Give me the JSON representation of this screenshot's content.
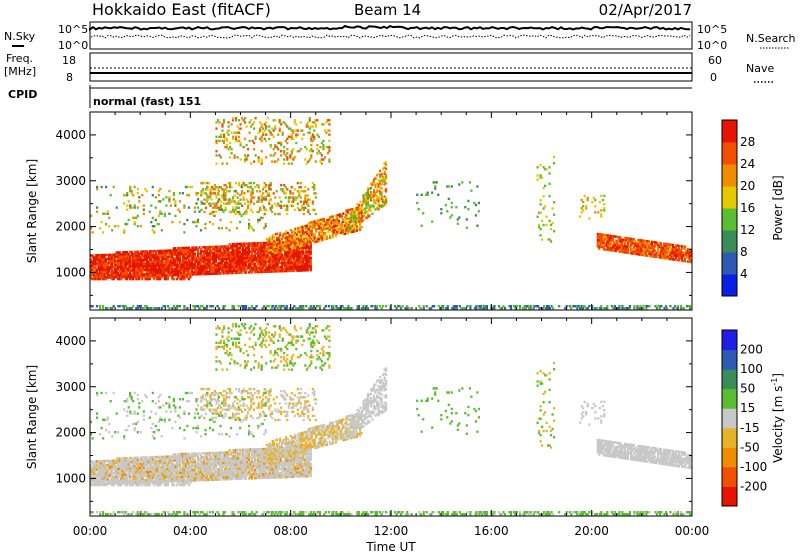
{
  "header": {
    "station": "Hokkaido East (fitACF)",
    "beam": "Beam 14",
    "date": "02/Apr/2017"
  },
  "top_panels": {
    "nsky_label": "N.Sky",
    "nsearch_label": "N.Search",
    "noise_ticks": [
      "10^5",
      "10^0"
    ],
    "freq_label_1": "Freq.",
    "freq_label_2": "[MHz]",
    "freq_ticks": [
      "18",
      "8"
    ],
    "nave_label": "Nave",
    "nave_ticks": [
      "60",
      "0"
    ],
    "cpid_label": "CPID",
    "cpid_value": "normal (fast) 151"
  },
  "colors": {
    "power": [
      "#0a1ee6",
      "#2d5ab4",
      "#3c8c5a",
      "#5abe32",
      "#e6c800",
      "#f08c00",
      "#f05000",
      "#e61400"
    ],
    "velocity": [
      "#e61400",
      "#f05000",
      "#f08c00",
      "#e6b428",
      "#c8c8c8",
      "#5abe32",
      "#3c8c5a",
      "#2d5ab4",
      "#1e1ee6"
    ]
  },
  "chart_data": [
    {
      "type": "heatmap",
      "name": "power",
      "ylabel": "Slant Range [km]",
      "xlabel": "Time UT",
      "xlim": [
        0,
        24
      ],
      "ylim": [
        180,
        4500
      ],
      "x_ticks": [
        "00:00",
        "04:00",
        "08:00",
        "12:00",
        "16:00",
        "20:00",
        "00:00"
      ],
      "y_ticks": [
        1000,
        2000,
        3000,
        4000
      ],
      "colorbar_label": "Power [dB]",
      "colorbar_ticks": [
        "4",
        "8",
        "12",
        "16",
        "20",
        "24",
        "28"
      ],
      "colorbar_range": [
        0,
        32
      ]
    },
    {
      "type": "heatmap",
      "name": "velocity",
      "ylabel": "Slant Range [km]",
      "xlabel": "Time UT",
      "xlim": [
        0,
        24
      ],
      "ylim": [
        180,
        4500
      ],
      "x_ticks": [
        "00:00",
        "04:00",
        "08:00",
        "12:00",
        "16:00",
        "20:00",
        "00:00"
      ],
      "y_ticks": [
        1000,
        2000,
        3000,
        4000
      ],
      "colorbar_label": "Velocity [m s",
      "colorbar_label_sup": "-1",
      "colorbar_label_end": "]",
      "colorbar_ticks": [
        "-200",
        "-100",
        "-50",
        "-15",
        "15",
        "50",
        "100",
        "200"
      ]
    }
  ]
}
